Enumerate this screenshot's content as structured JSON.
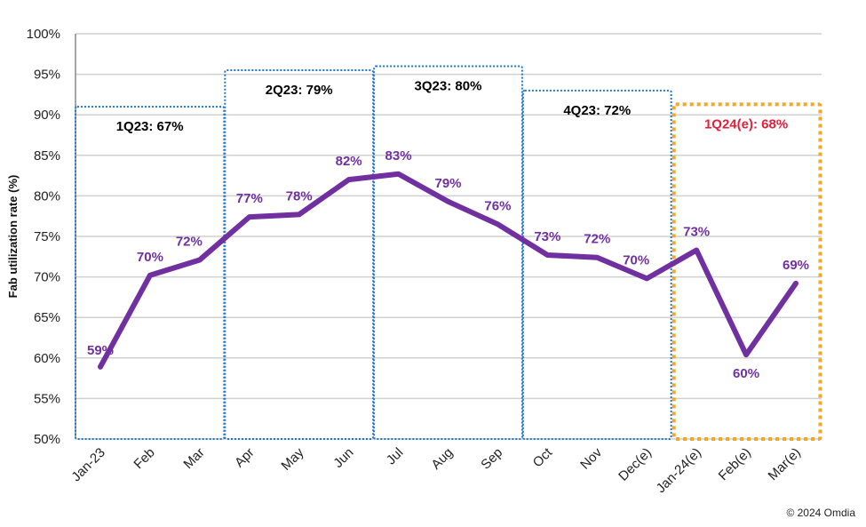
{
  "chart_data": {
    "type": "line",
    "ylabel": "Fab utilization rate (%)",
    "ylim": [
      50,
      100
    ],
    "yticks": [
      "50%",
      "55%",
      "60%",
      "65%",
      "70%",
      "75%",
      "80%",
      "85%",
      "90%",
      "95%",
      "100%"
    ],
    "grid": true,
    "categories": [
      "Jan-23",
      "Feb",
      "Mar",
      "Apr",
      "May",
      "Jun",
      "Jul",
      "Aug",
      "Sep",
      "Oct",
      "Nov",
      "Dec(e)",
      "Jan-24(e)",
      "Feb(e)",
      "Mar(e)"
    ],
    "series": [
      {
        "values": [
          58.9,
          70.2,
          72.1,
          77.4,
          77.7,
          82.0,
          82.7,
          79.3,
          76.5,
          72.7,
          72.4,
          69.8,
          73.3,
          60.4,
          69.2
        ],
        "color": "#7030a0"
      }
    ],
    "data_labels": [
      "59%",
      "70%",
      "72%",
      "77%",
      "78%",
      "82%",
      "83%",
      "79%",
      "76%",
      "73%",
      "72%",
      "70%",
      "73%",
      "60%",
      "69%"
    ],
    "annotations": [
      {
        "label": "1Q23: 67%",
        "from": "Jan-23",
        "to": "Mar",
        "top": 91,
        "color": "#1f78d1",
        "text_color": "#000000"
      },
      {
        "label": "2Q23: 79%",
        "from": "Apr",
        "to": "Jun",
        "top": 95.5,
        "color": "#1f78d1",
        "text_color": "#000000"
      },
      {
        "label": "3Q23: 80%",
        "from": "Jul",
        "to": "Sep",
        "top": 96,
        "color": "#1f78d1",
        "text_color": "#000000"
      },
      {
        "label": "4Q23: 72%",
        "from": "Oct",
        "to": "Dec(e)",
        "top": 93,
        "color": "#1f78d1",
        "text_color": "#000000"
      },
      {
        "label": "1Q24(e): 68%",
        "from": "Jan-24(e)",
        "to": "Mar(e)",
        "top": 91.3,
        "color": "#f5a623",
        "text_color": "#e0203a"
      }
    ]
  },
  "copyright": "© 2024 Omdia"
}
